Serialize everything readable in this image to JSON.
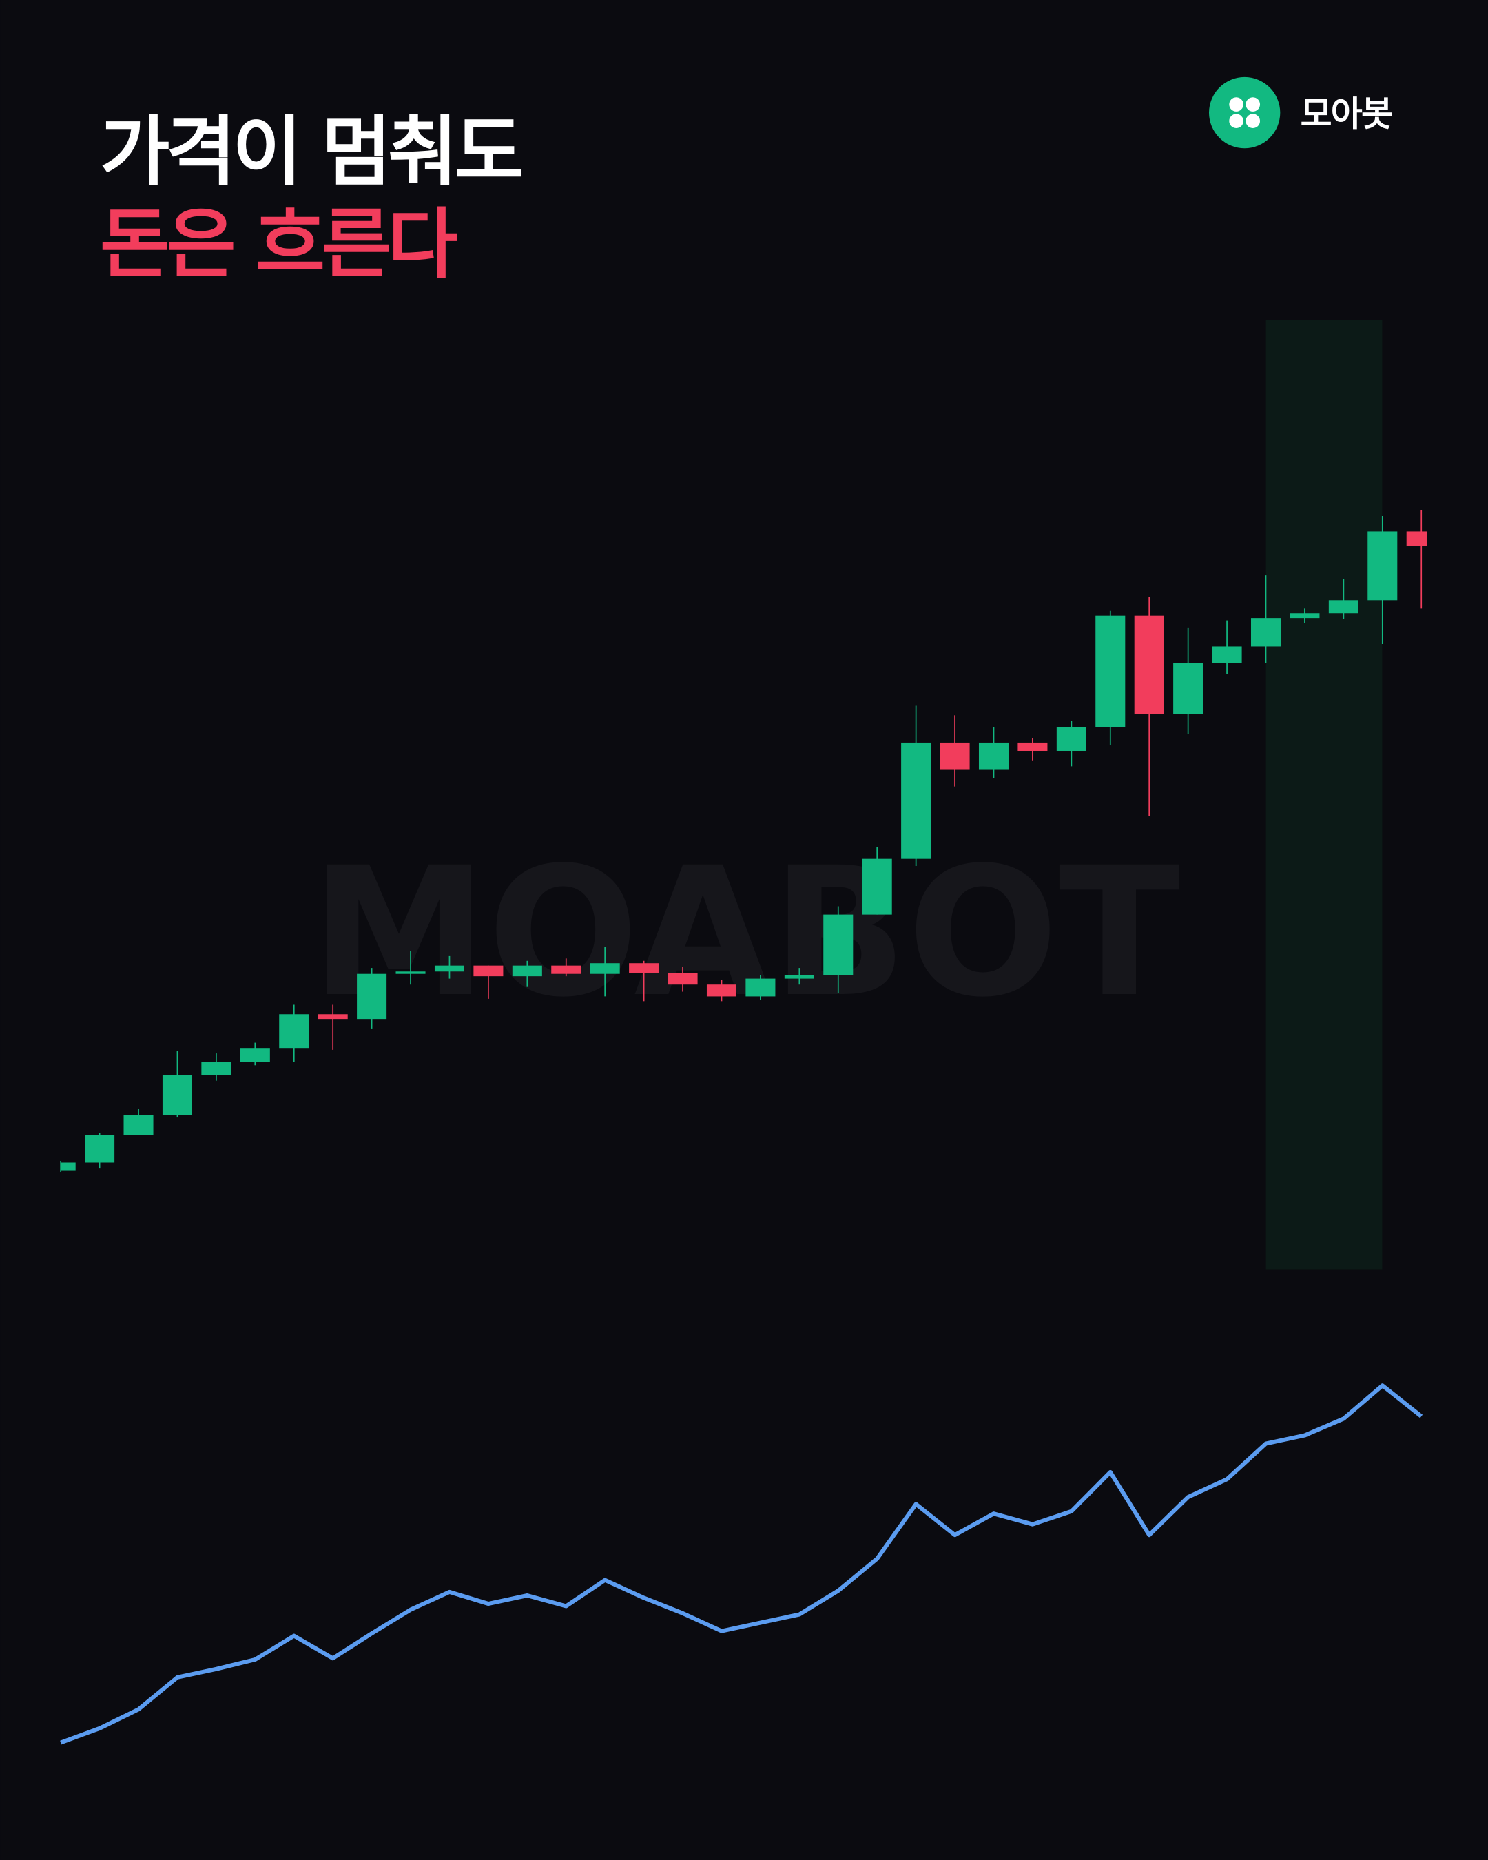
{
  "title": {
    "line1": "가격이 멈춰도",
    "line2": "돈은 흐른다"
  },
  "brand": {
    "name": "모아봇",
    "watermark": "MOABOT"
  },
  "chart_data": [
    {
      "type": "candlestick",
      "color_up": "#12b981",
      "color_down": "#f23d5c",
      "ylim": [
        0,
        850
      ],
      "open": [
        113,
        120,
        143,
        160,
        194,
        205,
        216,
        245,
        241,
        279,
        281,
        286,
        277,
        286,
        279,
        288,
        280,
        270,
        260,
        275,
        278,
        329,
        376,
        474,
        451,
        474,
        467,
        487,
        581,
        498,
        541,
        555,
        579,
        583,
        594,
        652
      ],
      "high": [
        121,
        145,
        165,
        214,
        212,
        221,
        253,
        253,
        284,
        298,
        294,
        286,
        290,
        292,
        302,
        290,
        285,
        274,
        278,
        284,
        336,
        386,
        505,
        497,
        487,
        478,
        492,
        585,
        597,
        571,
        577,
        615,
        587,
        612,
        665,
        670
      ],
      "low": [
        112,
        115,
        143,
        158,
        189,
        202,
        205,
        215,
        233,
        270,
        275,
        258,
        268,
        277,
        260,
        256,
        264,
        256,
        257,
        270,
        263,
        329,
        370,
        437,
        444,
        459,
        454,
        472,
        412,
        481,
        532,
        541,
        575,
        578,
        557,
        587
      ],
      "close": [
        120,
        143,
        160,
        194,
        205,
        216,
        245,
        241,
        279,
        281,
        286,
        277,
        286,
        279,
        288,
        280,
        270,
        260,
        275,
        278,
        329,
        376,
        474,
        451,
        474,
        467,
        487,
        581,
        498,
        541,
        555,
        579,
        583,
        594,
        652,
        640
      ]
    },
    {
      "type": "line",
      "color": "#5b9cf0",
      "ylim": [
        0,
        350
      ],
      "values": [
        31,
        43,
        59,
        86,
        93,
        101,
        121,
        102,
        123,
        143,
        158,
        148,
        155,
        146,
        168,
        153,
        140,
        125,
        132,
        139,
        159,
        186,
        232,
        206,
        224,
        215,
        226,
        259,
        206,
        238,
        253,
        283,
        290,
        304,
        332,
        306
      ]
    }
  ]
}
